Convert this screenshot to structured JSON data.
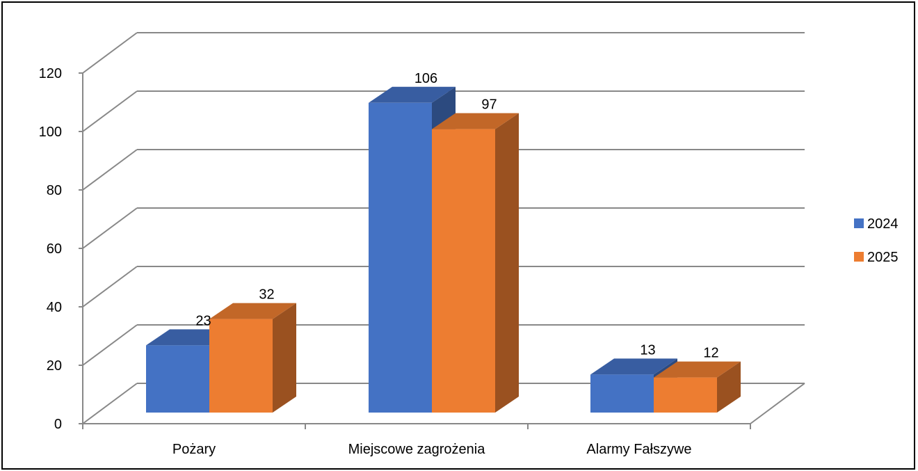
{
  "chart_data": {
    "type": "bar",
    "title": "",
    "xlabel": "",
    "ylabel": "",
    "categories": [
      "Pożary",
      "Miejscowe zagrożenia",
      "Alarmy Fałszywe"
    ],
    "series": [
      {
        "name": "2024",
        "values": [
          23,
          106,
          13
        ],
        "labels": [
          "23",
          "106",
          "13"
        ],
        "color": "#4472C4"
      },
      {
        "name": "2025",
        "values": [
          32,
          97,
          12
        ],
        "labels": [
          "32",
          "97",
          "12"
        ],
        "color": "#ED7D31"
      }
    ],
    "ylim": [
      0,
      120
    ],
    "yticks": [
      "0",
      "20",
      "40",
      "60",
      "80",
      "100",
      "120"
    ],
    "grid": true,
    "legend_position": "right",
    "style": "3d-clustered-column"
  }
}
